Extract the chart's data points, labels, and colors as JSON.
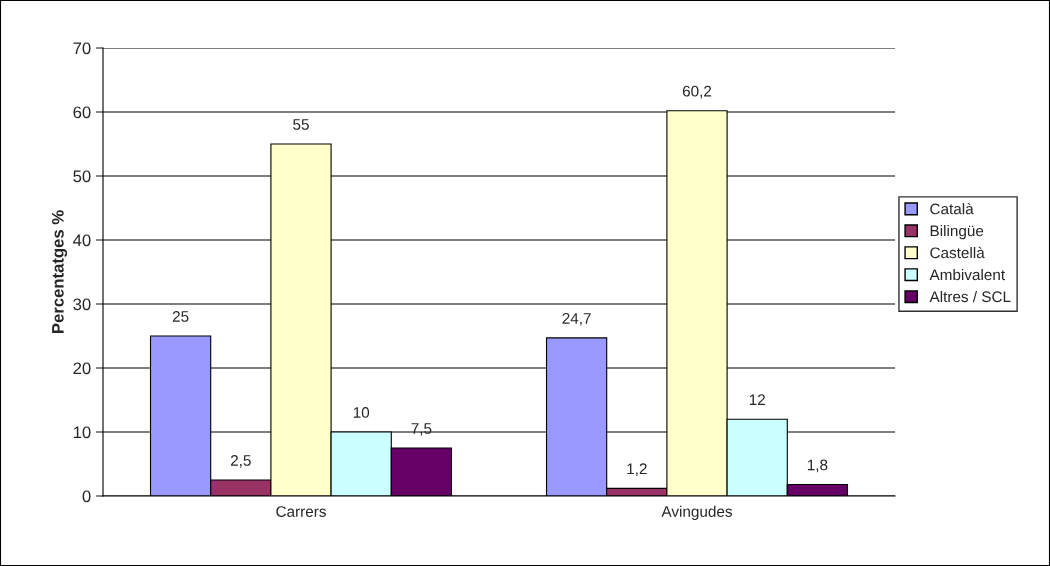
{
  "chart_data": {
    "type": "bar",
    "ylabel": "Percentatges %",
    "categories": [
      "Carrers",
      "Avingudes"
    ],
    "series": [
      {
        "name": "Català",
        "color": "#9999ff",
        "values": [
          25,
          24.7
        ],
        "value_labels": [
          "25",
          "24,7"
        ]
      },
      {
        "name": "Bilingüe",
        "color": "#993366",
        "values": [
          2.5,
          1.2
        ],
        "value_labels": [
          "2,5",
          "1,2"
        ]
      },
      {
        "name": "Castellà",
        "color": "#ffffcc",
        "values": [
          55,
          60.2
        ],
        "value_labels": [
          "55",
          "60,2"
        ]
      },
      {
        "name": "Ambivalent",
        "color": "#ccffff",
        "values": [
          10,
          12
        ],
        "value_labels": [
          "10",
          "12"
        ]
      },
      {
        "name": "Altres / SCL",
        "color": "#660066",
        "values": [
          7.5,
          1.8
        ],
        "value_labels": [
          "7,5",
          "1,8"
        ]
      }
    ],
    "ylim": [
      0,
      70
    ],
    "yticks": [
      0,
      10,
      20,
      30,
      40,
      50,
      60,
      70
    ],
    "grid": "y",
    "legend": "right"
  }
}
